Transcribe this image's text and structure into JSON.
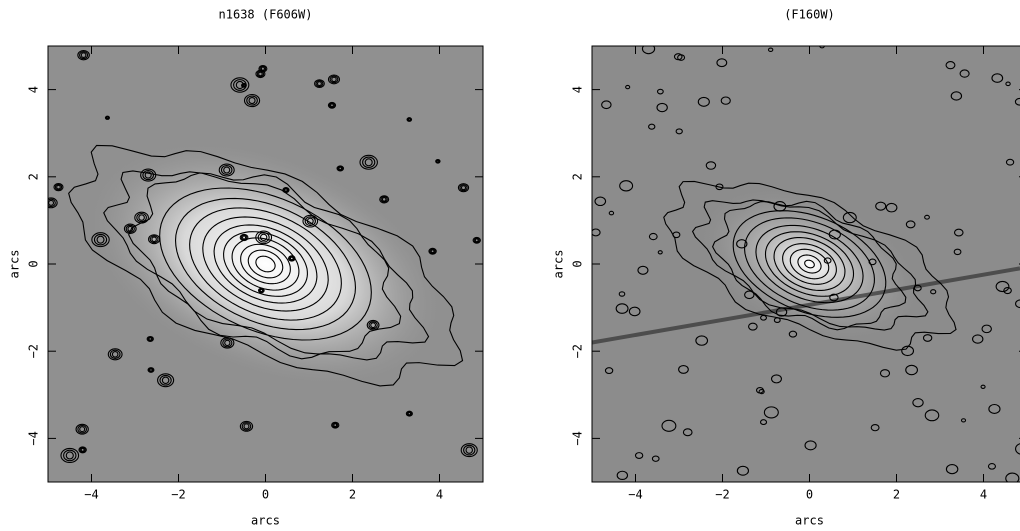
{
  "chart_data": [
    {
      "type": "image",
      "title": "n1638 (F606W)",
      "xlabel": "arcs",
      "ylabel": "arcs",
      "xlim": [
        -5,
        5
      ],
      "ylim": [
        -5,
        5
      ],
      "xticks": [
        {
          "value": -4,
          "label": "−4"
        },
        {
          "value": -2,
          "label": "−2"
        },
        0,
        2,
        4
      ],
      "yticks": [
        {
          "value": -4,
          "label": "−4"
        },
        {
          "value": -2,
          "label": "−2"
        },
        0,
        2,
        4
      ]
    },
    {
      "type": "image",
      "title": "(F160W)",
      "xlabel": "arcs",
      "ylabel": "arcs",
      "xlim": [
        -5,
        5
      ],
      "ylim": [
        -5,
        5
      ],
      "xticks": [
        {
          "value": -4,
          "label": "−4"
        },
        {
          "value": -2,
          "label": "−2"
        },
        0,
        2,
        4
      ],
      "yticks": [
        {
          "value": -4,
          "label": "−4"
        },
        {
          "value": -2,
          "label": "−2"
        },
        0,
        2,
        4
      ]
    }
  ]
}
